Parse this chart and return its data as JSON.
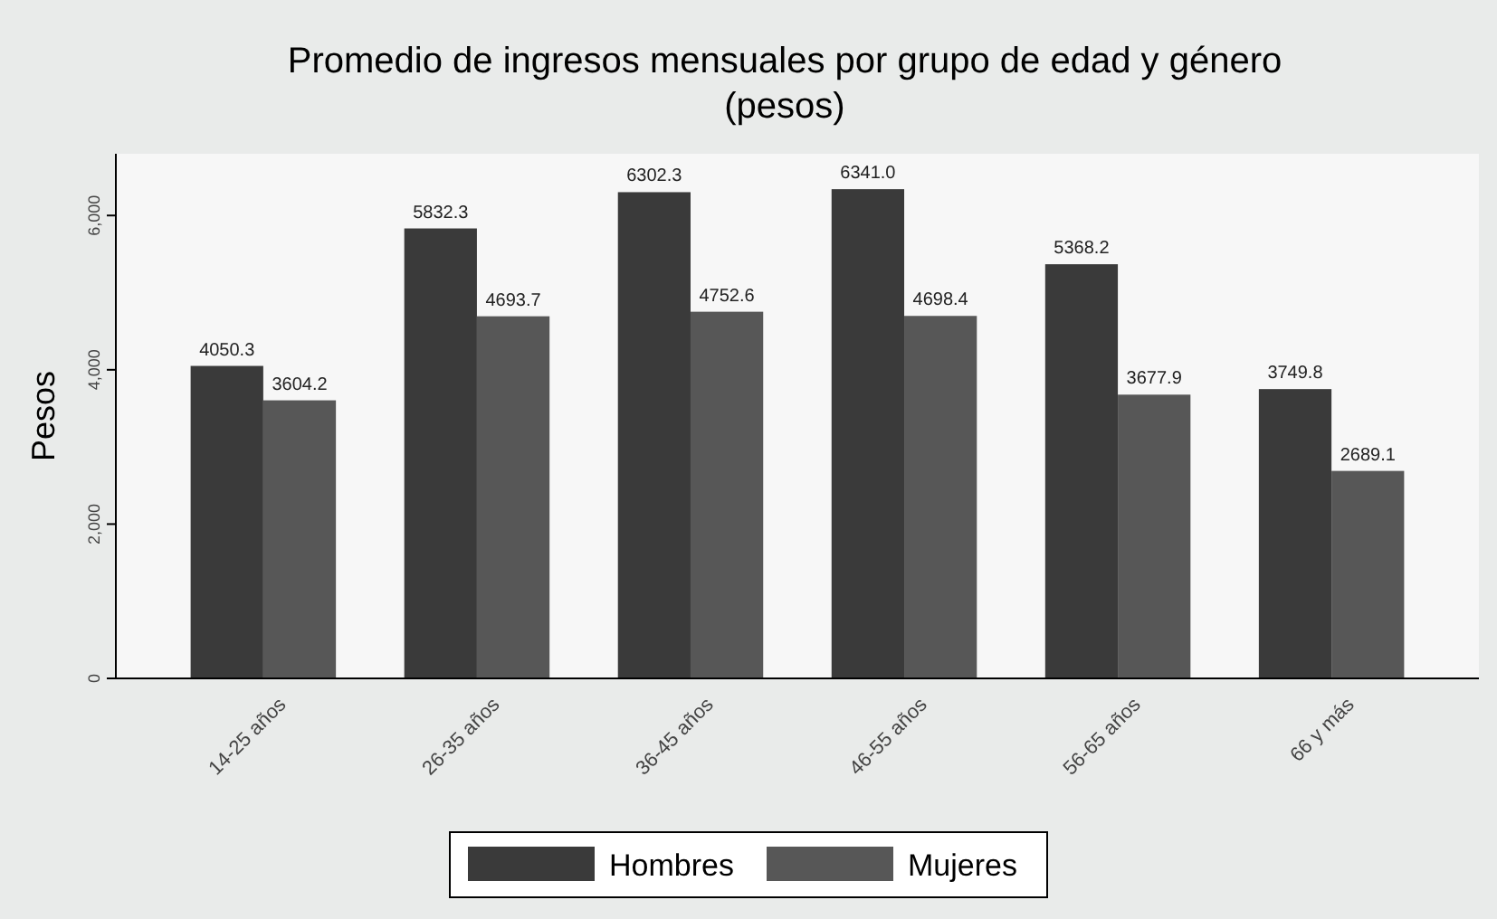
{
  "chart_data": {
    "type": "bar",
    "title": "Promedio de ingresos mensuales por grupo de edad y género",
    "subtitle": "(pesos)",
    "ylabel": "Pesos",
    "categories": [
      "14-25 años",
      "26-35 años",
      "36-45 años",
      "46-55 años",
      "56-65 años",
      "66 y más"
    ],
    "series": [
      {
        "name": "Hombres",
        "color": "#3a3a3a",
        "values": [
          4050.3,
          5832.3,
          6302.3,
          6341.0,
          5368.2,
          3749.8
        ],
        "value_labels": [
          "4050.3",
          "5832.3",
          "6302.3",
          "6341.0",
          "5368.2",
          "3749.8"
        ]
      },
      {
        "name": "Mujeres",
        "color": "#575757",
        "values": [
          3604.2,
          4693.7,
          4752.6,
          4698.4,
          3677.9,
          2689.1
        ],
        "value_labels": [
          "3604.2",
          "4693.7",
          "4752.6",
          "4698.4",
          "3677.9",
          "2689.1"
        ]
      }
    ],
    "ylim": [
      0,
      6800
    ],
    "yticks": [
      0,
      {
        "value": 2000,
        "label": "2,000"
      },
      {
        "value": 4000,
        "label": "4,000"
      },
      {
        "value": 6000,
        "label": "6,000"
      }
    ],
    "grid": false,
    "legend": "bottom"
  }
}
